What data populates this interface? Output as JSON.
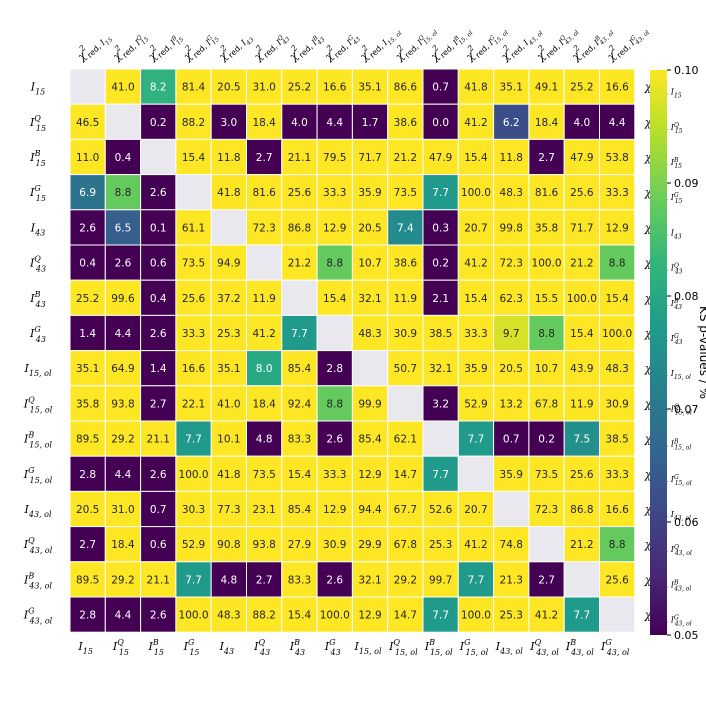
{
  "chart_data": {
    "type": "heatmap",
    "title": "",
    "row_labels": [
      {
        "base": "I",
        "sub": "15",
        "sup": ""
      },
      {
        "base": "I",
        "sub": "15",
        "sup": "Q"
      },
      {
        "base": "I",
        "sub": "15",
        "sup": "B"
      },
      {
        "base": "I",
        "sub": "15",
        "sup": "G"
      },
      {
        "base": "I",
        "sub": "43",
        "sup": ""
      },
      {
        "base": "I",
        "sub": "43",
        "sup": "Q"
      },
      {
        "base": "I",
        "sub": "43",
        "sup": "B"
      },
      {
        "base": "I",
        "sub": "43",
        "sup": "G"
      },
      {
        "base": "I",
        "sub": "15, ol",
        "sup": ""
      },
      {
        "base": "I",
        "sub": "15, ol",
        "sup": "Q"
      },
      {
        "base": "I",
        "sub": "15, ol",
        "sup": "B"
      },
      {
        "base": "I",
        "sub": "15, ol",
        "sup": "G"
      },
      {
        "base": "I",
        "sub": "43, ol",
        "sup": ""
      },
      {
        "base": "I",
        "sub": "43, ol",
        "sup": "Q"
      },
      {
        "base": "I",
        "sub": "43, ol",
        "sup": "B"
      },
      {
        "base": "I",
        "sub": "43, ol",
        "sup": "G"
      }
    ],
    "chi_prefix": "χ",
    "chi_power": "2",
    "chi_sub_prefix": "red, ",
    "values": [
      [
        null,
        41.0,
        8.2,
        81.4,
        20.5,
        31.0,
        25.2,
        16.6,
        35.1,
        86.6,
        0.7,
        41.8,
        35.1,
        49.1,
        25.2,
        16.6
      ],
      [
        46.5,
        null,
        0.2,
        88.2,
        3.0,
        18.4,
        4.0,
        4.4,
        1.7,
        38.6,
        0.0,
        41.2,
        6.2,
        18.4,
        4.0,
        4.4
      ],
      [
        11.0,
        0.4,
        null,
        15.4,
        11.8,
        2.7,
        21.1,
        79.5,
        71.7,
        21.2,
        47.9,
        15.4,
        11.8,
        2.7,
        47.9,
        53.8
      ],
      [
        6.9,
        8.8,
        2.6,
        null,
        41.8,
        81.6,
        25.6,
        33.3,
        35.9,
        73.5,
        7.7,
        100.0,
        48.3,
        81.6,
        25.6,
        33.3
      ],
      [
        2.6,
        6.5,
        0.1,
        61.1,
        null,
        72.3,
        86.8,
        12.9,
        20.5,
        7.4,
        0.3,
        20.7,
        99.8,
        35.8,
        71.7,
        12.9
      ],
      [
        0.4,
        2.6,
        0.6,
        73.5,
        94.9,
        null,
        21.2,
        8.8,
        10.7,
        38.6,
        0.2,
        41.2,
        72.3,
        100.0,
        21.2,
        8.8
      ],
      [
        25.2,
        99.6,
        0.4,
        25.6,
        37.2,
        11.9,
        null,
        15.4,
        32.1,
        11.9,
        2.1,
        15.4,
        62.3,
        15.5,
        100.0,
        15.4
      ],
      [
        1.4,
        4.4,
        2.6,
        33.3,
        25.3,
        41.2,
        7.7,
        null,
        48.3,
        30.9,
        38.5,
        33.3,
        9.7,
        8.8,
        15.4,
        100.0
      ],
      [
        35.1,
        64.9,
        1.4,
        16.6,
        35.1,
        8.0,
        85.4,
        2.8,
        null,
        50.7,
        32.1,
        35.9,
        20.5,
        10.7,
        43.9,
        48.3
      ],
      [
        35.8,
        93.8,
        2.7,
        22.1,
        41.0,
        18.4,
        92.4,
        8.8,
        99.9,
        null,
        3.2,
        52.9,
        13.2,
        67.8,
        11.9,
        30.9
      ],
      [
        89.5,
        29.2,
        21.1,
        7.7,
        10.1,
        4.8,
        83.3,
        2.6,
        85.4,
        62.1,
        null,
        7.7,
        0.7,
        0.2,
        7.5,
        38.5
      ],
      [
        2.8,
        4.4,
        2.6,
        100.0,
        41.8,
        73.5,
        15.4,
        33.3,
        12.9,
        14.7,
        7.7,
        null,
        35.9,
        73.5,
        25.6,
        33.3
      ],
      [
        20.5,
        31.0,
        0.7,
        30.3,
        77.3,
        23.1,
        85.4,
        12.9,
        94.4,
        67.7,
        52.6,
        20.7,
        null,
        72.3,
        86.8,
        16.6
      ],
      [
        2.7,
        18.4,
        0.6,
        52.9,
        90.8,
        93.8,
        27.9,
        30.9,
        29.9,
        67.8,
        25.3,
        41.2,
        74.8,
        null,
        21.2,
        8.8
      ],
      [
        89.5,
        29.2,
        21.1,
        7.7,
        4.8,
        2.7,
        83.3,
        2.6,
        32.1,
        29.2,
        99.7,
        7.7,
        21.3,
        2.7,
        null,
        25.6
      ],
      [
        2.8,
        4.4,
        2.6,
        100.0,
        48.3,
        88.2,
        15.4,
        100.0,
        12.9,
        14.7,
        7.7,
        100.0,
        25.3,
        41.2,
        7.7,
        null
      ]
    ],
    "colorbar": {
      "label": "KS p-values / %",
      "min": 0.05,
      "max": 0.1,
      "ticks": [
        "0.05",
        "0.06",
        "0.07",
        "0.08",
        "0.09",
        "0.10"
      ],
      "colormap": "viridis"
    },
    "diagonal_color": "#e8e8ee",
    "grid": false
  }
}
